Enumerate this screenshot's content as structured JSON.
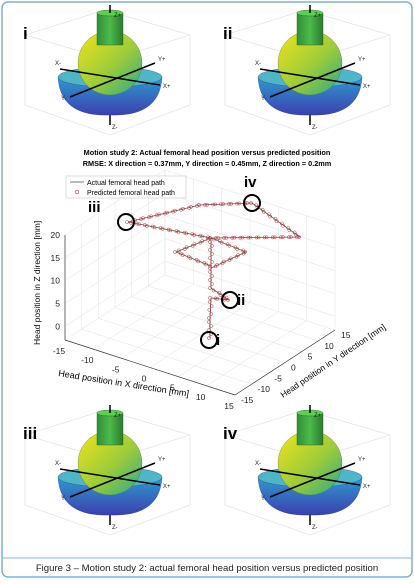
{
  "panels": [
    {
      "label": "i",
      "axes": [
        "Z+",
        "Z-",
        "X-",
        "X+",
        "Y-",
        "Y+"
      ]
    },
    {
      "label": "ii",
      "axes": [
        "Z+",
        "Z-",
        "X-",
        "X+",
        "Y-",
        "Y+"
      ]
    },
    {
      "label": "iii",
      "axes": [
        "Z+",
        "Z-",
        "X-",
        "X+",
        "Y-",
        "Y+"
      ]
    },
    {
      "label": "iv",
      "axes": [
        "Z+",
        "Z-",
        "X-",
        "X+",
        "Y-",
        "Y+"
      ]
    }
  ],
  "main_plot": {
    "title": "Motion study 2: Actual femoral head position versus predicted position",
    "subtitle": "RMSE: X direction = 0.37mm, Y direction = 0.45mm, Z direction = 0.2mm",
    "legend": [
      "Actual femoral head path",
      "Predicted femoral head path"
    ],
    "z_label": "Head position in Z direction [mm]",
    "x_label": "Head position in X direction [mm]",
    "y_label": "Head position in Y direction [mm]",
    "z_ticks": [
      0,
      5,
      10,
      15,
      20
    ],
    "x_ticks": [
      -15,
      -10,
      -5,
      0,
      5,
      10,
      15
    ],
    "y_ticks": [
      -15,
      -10,
      -5,
      0,
      5,
      10,
      15
    ],
    "markers": [
      "i",
      "ii",
      "iii",
      "iv"
    ]
  },
  "caption": "Figure 3 – Motion study 2: actual femoral head position versus predicted position"
}
